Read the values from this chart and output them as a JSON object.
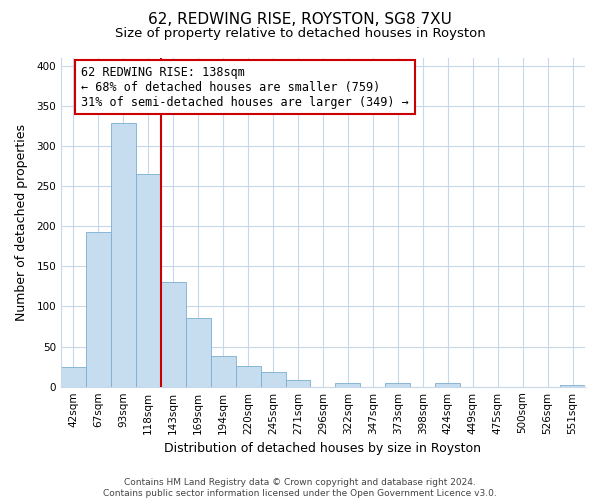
{
  "title": "62, REDWING RISE, ROYSTON, SG8 7XU",
  "subtitle": "Size of property relative to detached houses in Royston",
  "xlabel": "Distribution of detached houses by size in Royston",
  "ylabel": "Number of detached properties",
  "bar_labels": [
    "42sqm",
    "67sqm",
    "93sqm",
    "118sqm",
    "143sqm",
    "169sqm",
    "194sqm",
    "220sqm",
    "245sqm",
    "271sqm",
    "296sqm",
    "322sqm",
    "347sqm",
    "373sqm",
    "398sqm",
    "424sqm",
    "449sqm",
    "475sqm",
    "500sqm",
    "526sqm",
    "551sqm"
  ],
  "bar_values": [
    25,
    193,
    328,
    265,
    130,
    86,
    38,
    26,
    18,
    8,
    0,
    4,
    0,
    4,
    0,
    4,
    0,
    0,
    0,
    0,
    2
  ],
  "bar_color": "#c6ddf0",
  "bar_edge_color": "#7aaed0",
  "vline_color": "#cc0000",
  "vline_pos": 3.5,
  "annotation_text": "62 REDWING RISE: 138sqm\n← 68% of detached houses are smaller (759)\n31% of semi-detached houses are larger (349) →",
  "annotation_box_edge": "#cc0000",
  "ylim": [
    0,
    410
  ],
  "yticks": [
    0,
    50,
    100,
    150,
    200,
    250,
    300,
    350,
    400
  ],
  "footer_line1": "Contains HM Land Registry data © Crown copyright and database right 2024.",
  "footer_line2": "Contains public sector information licensed under the Open Government Licence v3.0.",
  "bg_color": "#ffffff",
  "grid_color": "#c8d8e8",
  "title_fontsize": 11,
  "subtitle_fontsize": 9.5,
  "axis_label_fontsize": 9,
  "tick_fontsize": 7.5,
  "annotation_fontsize": 8.5,
  "footer_fontsize": 6.5
}
